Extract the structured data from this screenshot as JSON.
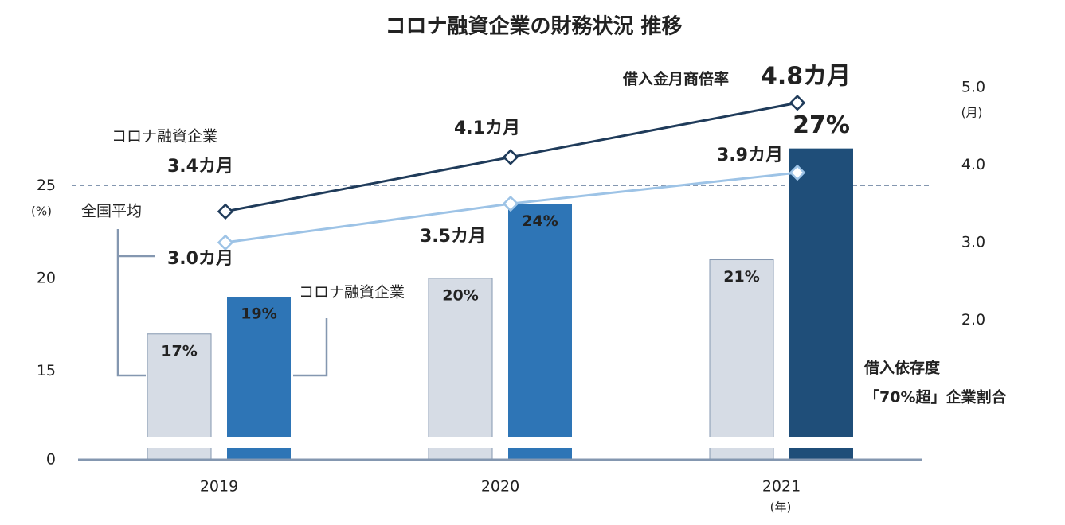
{
  "chart_data": {
    "type": "bar",
    "title": "コロナ融資企業の財務状況 推移",
    "categories": [
      "2019",
      "2020",
      "2021"
    ],
    "x_label": "(年)",
    "y_label": "(%)",
    "y2_label": "(月)",
    "ylim": [
      0,
      27.5
    ],
    "y_break": 13,
    "yticks": [
      0,
      15,
      20,
      25
    ],
    "y2lim": [
      0.2,
      5.1
    ],
    "y2ticks": [
      {
        "value": 2,
        "label": "2.0"
      },
      {
        "value": 3,
        "label": "3.0"
      },
      {
        "value": 4,
        "label": "4.0"
      },
      {
        "value": 5,
        "label": "5.0"
      }
    ],
    "reference_line": 25,
    "series": [
      {
        "kind": "bar",
        "color": "#d6dce5",
        "values": [
          17,
          20,
          21
        ],
        "value_labels": [
          "17%",
          "20%",
          "21%"
        ]
      },
      {
        "kind": "bar",
        "name": "コロナ融資企業",
        "colors": [
          "#2e75b6",
          "#2e75b6",
          "#1f4e79"
        ],
        "values": [
          19,
          24,
          27
        ],
        "value_labels": [
          "19%",
          "24%",
          "27%"
        ]
      },
      {
        "kind": "line",
        "axis": "y2",
        "name": "コロナ融資企業",
        "color": "#1f3b5a",
        "values": [
          3.4,
          4.1,
          4.8
        ],
        "value_labels": [
          "3.4カ月",
          "4.1カ月",
          "4.8カ月"
        ]
      },
      {
        "kind": "line",
        "axis": "y2",
        "name": "全国平均",
        "color": "#9dc3e6",
        "values": [
          3.0,
          3.5,
          3.9
        ],
        "value_labels": [
          "3.0カ月",
          "3.5カ月",
          "3.9カ月"
        ]
      }
    ],
    "annotations": [
      "借入金月商倍率",
      "借入依存度",
      "「70%超」企業割合"
    ]
  }
}
